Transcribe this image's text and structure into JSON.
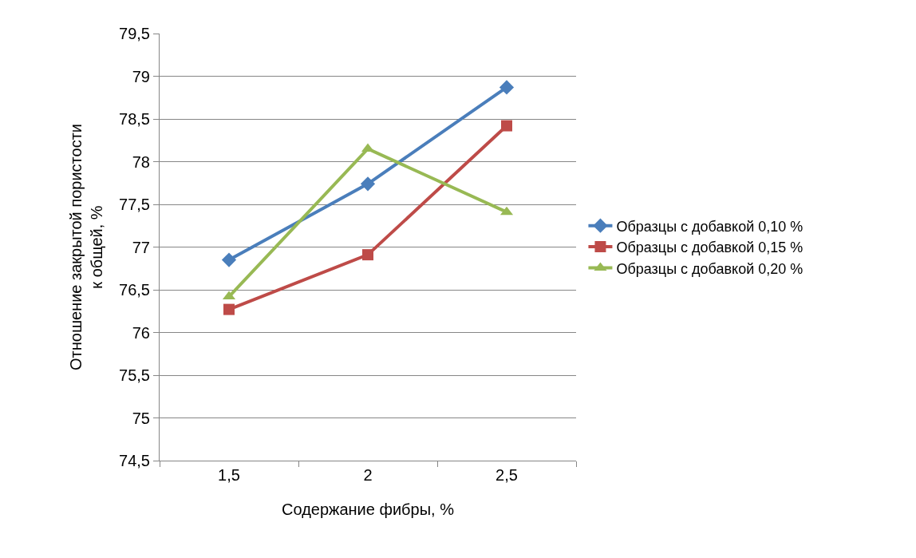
{
  "chart_data": {
    "type": "line",
    "xlabel": "Содержание фибры, %",
    "ylabel": "Отношение закрытой пористости\nк общей, %",
    "categories": [
      "1,5",
      "2",
      "2,5"
    ],
    "series": [
      {
        "name": "Образцы с добавкой 0,10 %",
        "color": "#4a7ebb",
        "marker": "diamond",
        "values": [
          76.85,
          77.74,
          78.87
        ]
      },
      {
        "name": "Образцы с добавкой 0,15 %",
        "color": "#be4b48",
        "marker": "square",
        "values": [
          76.27,
          76.91,
          78.42
        ]
      },
      {
        "name": "Образцы с добавкой 0,20 %",
        "color": "#98b954",
        "marker": "triangle",
        "values": [
          76.42,
          78.15,
          77.41
        ]
      }
    ],
    "ylim": [
      74.5,
      79.5
    ],
    "yticks": [
      {
        "value": 74.5,
        "label": "74,5"
      },
      75,
      {
        "value": 75.5,
        "label": "75,5"
      },
      76,
      {
        "value": 76.5,
        "label": "76,5"
      },
      77,
      {
        "value": 77.5,
        "label": "77,5"
      },
      78,
      {
        "value": 78.5,
        "label": "78,5"
      },
      79,
      {
        "value": 79.5,
        "label": "79,5"
      }
    ],
    "grid": "y",
    "legend": "right",
    "line_style": "solid"
  }
}
